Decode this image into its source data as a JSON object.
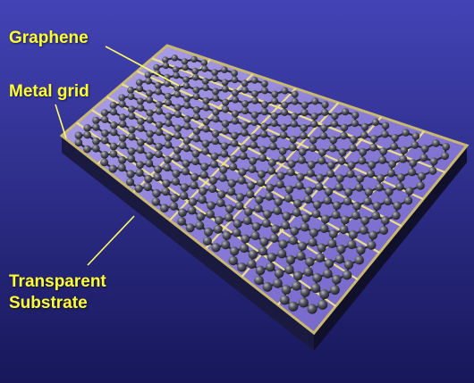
{
  "labels": {
    "graphene": "Graphene",
    "metal_grid": "Metal grid",
    "substrate_line1": "Transparent",
    "substrate_line2": "Substrate"
  },
  "colors": {
    "background_top": "#4343b6",
    "background_bottom": "#17175a",
    "label_text": "#ffff33",
    "leader_line": "#ffff66",
    "metal_grid": "#f0e48a",
    "substrate_top": "#8c7fd8",
    "substrate_side": "#1a1a40",
    "substrate_edge": "#c8b870",
    "bond": "#2b2b33",
    "atom": "#55555f"
  },
  "diagram": {
    "grid_divisions": 7,
    "lattice_columns": 18,
    "lattice_rows": 11
  }
}
